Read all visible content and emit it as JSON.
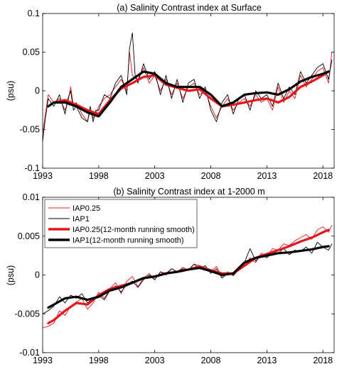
{
  "chart_data": [
    {
      "type": "line",
      "title": "(a) Salinity Contrast index at Surface",
      "xlabel": "",
      "ylabel": "(psu)",
      "xlim": [
        1993,
        2019
      ],
      "ylim": [
        -0.1,
        0.1
      ],
      "xticks": [
        1993,
        1998,
        2003,
        2008,
        2013,
        2018
      ],
      "yticks": [
        -0.1,
        -0.05,
        0,
        0.05,
        0.1
      ],
      "ytick_labels": [
        "-0.1",
        "-0.05",
        "0",
        "0.05",
        "0.1"
      ],
      "colors": {
        "IAP0.25": "#e8141c",
        "IAP1": "#000000"
      },
      "series": [
        {
          "name": "IAP0.25",
          "style": "thin",
          "color": "#e8141c",
          "x": [
            1993.0,
            1993.25,
            1993.5,
            1994.0,
            1994.5,
            1995.0,
            1995.25,
            1995.5,
            1995.75,
            1996.0,
            1996.5,
            1997.0,
            1997.25,
            1997.5,
            1997.75,
            1998.0,
            1998.5,
            1999.0,
            1999.5,
            2000.0,
            2000.5,
            2000.75,
            2001.0,
            2001.5,
            2002.0,
            2002.5,
            2003.0,
            2003.5,
            2004.0,
            2004.5,
            2005.0,
            2005.5,
            2006.0,
            2006.5,
            2007.0,
            2007.5,
            2008.0,
            2008.5,
            2009.0,
            2009.5,
            2010.0,
            2010.5,
            2011.0,
            2011.5,
            2012.0,
            2012.5,
            2013.0,
            2013.5,
            2014.0,
            2014.5,
            2015.0,
            2015.5,
            2016.0,
            2016.5,
            2017.0,
            2017.5,
            2018.0,
            2018.5,
            2018.8
          ],
          "y": [
            -0.055,
            -0.03,
            -0.005,
            -0.015,
            -0.01,
            -0.025,
            -0.015,
            0.005,
            -0.02,
            -0.015,
            -0.03,
            -0.04,
            -0.025,
            -0.035,
            -0.03,
            -0.02,
            -0.01,
            -0.005,
            0.005,
            0.015,
            0.0,
            0.05,
            0.02,
            0.015,
            0.03,
            0.01,
            0.02,
            0.0,
            0.015,
            -0.005,
            0.01,
            -0.01,
            0.005,
            0.01,
            -0.005,
            0.0,
            -0.02,
            -0.035,
            -0.02,
            -0.01,
            -0.025,
            -0.015,
            -0.01,
            -0.02,
            -0.005,
            -0.015,
            -0.01,
            -0.025,
            0.005,
            -0.015,
            0.0,
            -0.01,
            0.02,
            0.005,
            0.015,
            0.025,
            0.03,
            0.01,
            0.05
          ]
        },
        {
          "name": "IAP1",
          "style": "thin",
          "color": "#000000",
          "x": [
            1993.0,
            1993.25,
            1993.5,
            1994.0,
            1994.5,
            1995.0,
            1995.25,
            1995.5,
            1995.75,
            1996.0,
            1996.5,
            1997.0,
            1997.25,
            1997.5,
            1997.75,
            1998.0,
            1998.5,
            1999.0,
            1999.5,
            2000.0,
            2000.5,
            2000.75,
            2001.0,
            2001.25,
            2001.5,
            2002.0,
            2002.5,
            2003.0,
            2003.5,
            2004.0,
            2004.5,
            2005.0,
            2005.5,
            2006.0,
            2006.5,
            2007.0,
            2007.5,
            2008.0,
            2008.5,
            2009.0,
            2009.5,
            2010.0,
            2010.5,
            2011.0,
            2011.5,
            2012.0,
            2012.5,
            2013.0,
            2013.5,
            2014.0,
            2014.5,
            2015.0,
            2015.5,
            2016.0,
            2016.5,
            2017.0,
            2017.5,
            2018.0,
            2018.5,
            2018.8
          ],
          "y": [
            -0.065,
            -0.035,
            -0.01,
            -0.02,
            -0.005,
            -0.03,
            -0.01,
            0.0,
            -0.025,
            -0.02,
            -0.035,
            -0.04,
            -0.02,
            -0.04,
            -0.025,
            -0.025,
            -0.005,
            -0.01,
            0.01,
            0.02,
            -0.005,
            0.055,
            0.075,
            0.02,
            0.01,
            0.035,
            0.015,
            0.025,
            -0.005,
            0.02,
            -0.01,
            0.015,
            -0.015,
            0.01,
            0.015,
            -0.01,
            0.005,
            -0.025,
            -0.04,
            -0.015,
            -0.005,
            -0.03,
            -0.01,
            -0.005,
            -0.025,
            0.0,
            -0.01,
            -0.005,
            -0.02,
            0.01,
            -0.01,
            0.005,
            -0.005,
            0.025,
            0.01,
            0.02,
            0.03,
            0.035,
            0.015,
            0.04
          ]
        },
        {
          "name": "IAP0.25(12-month running smooth)",
          "style": "thick",
          "color": "#e8141c",
          "x": [
            1993.5,
            1994.0,
            1995.0,
            1996.0,
            1997.0,
            1998.0,
            1999.0,
            2000.0,
            2001.0,
            2002.0,
            2003.0,
            2004.0,
            2005.0,
            2006.0,
            2007.0,
            2008.0,
            2009.0,
            2010.0,
            2011.0,
            2012.0,
            2013.0,
            2014.0,
            2015.0,
            2016.0,
            2017.0,
            2018.0,
            2018.5
          ],
          "y": [
            -0.02,
            -0.015,
            -0.012,
            -0.018,
            -0.025,
            -0.03,
            -0.012,
            0.003,
            0.01,
            0.018,
            0.02,
            0.008,
            0.004,
            0.0,
            0.002,
            -0.01,
            -0.02,
            -0.018,
            -0.015,
            -0.012,
            -0.01,
            -0.015,
            -0.008,
            0.005,
            0.012,
            0.02,
            0.025
          ]
        },
        {
          "name": "IAP1(12-month running smooth)",
          "style": "thick",
          "color": "#000000",
          "x": [
            1993.5,
            1994.0,
            1995.0,
            1996.0,
            1997.0,
            1998.0,
            1999.0,
            2000.0,
            2001.0,
            2002.0,
            2003.0,
            2004.0,
            2005.0,
            2006.0,
            2007.0,
            2008.0,
            2009.0,
            2010.0,
            2011.0,
            2012.0,
            2013.0,
            2014.0,
            2015.0,
            2016.0,
            2017.0,
            2018.0,
            2018.5
          ],
          "y": [
            -0.02,
            -0.015,
            -0.015,
            -0.02,
            -0.028,
            -0.033,
            -0.015,
            0.005,
            0.015,
            0.025,
            0.022,
            0.01,
            0.005,
            0.005,
            0.005,
            -0.005,
            -0.02,
            -0.015,
            -0.005,
            -0.003,
            -0.002,
            -0.005,
            0.002,
            0.012,
            0.018,
            0.022,
            0.025
          ]
        }
      ]
    },
    {
      "type": "line",
      "title": "(b) Salinity Contrast index at 1-2000 m",
      "xlabel": "",
      "ylabel": "(psu)",
      "xlim": [
        1993,
        2019
      ],
      "ylim": [
        -0.01,
        0.01
      ],
      "xticks": [
        1993,
        1998,
        2003,
        2008,
        2013,
        2018
      ],
      "yticks": [
        -0.01,
        -0.005,
        0,
        0.005,
        0.01
      ],
      "ytick_labels": [
        "-0.01",
        "-0.005",
        "0",
        "0.005",
        "0.01"
      ],
      "legend": {
        "position": "top-left",
        "entries": [
          "IAP0.25",
          "IAP1",
          "IAP0.25(12-month running smooth)",
          "IAP1(12-month running smooth)"
        ]
      },
      "series": [
        {
          "name": "IAP0.25",
          "style": "thin",
          "color": "#e8141c",
          "x": [
            1993.0,
            1993.5,
            1994.0,
            1994.5,
            1995.0,
            1995.5,
            1996.0,
            1996.5,
            1997.0,
            1997.5,
            1998.0,
            1998.5,
            1999.0,
            1999.5,
            2000.0,
            2000.5,
            2001.0,
            2001.5,
            2002.0,
            2002.5,
            2003.0,
            2003.5,
            2004.0,
            2004.5,
            2005.0,
            2005.5,
            2006.0,
            2006.5,
            2007.0,
            2007.5,
            2008.0,
            2008.5,
            2009.0,
            2009.5,
            2010.0,
            2010.5,
            2011.0,
            2011.5,
            2012.0,
            2012.5,
            2013.0,
            2013.5,
            2014.0,
            2014.5,
            2015.0,
            2015.5,
            2016.0,
            2016.5,
            2017.0,
            2017.5,
            2018.0,
            2018.5,
            2018.8
          ],
          "y": [
            -0.0068,
            -0.0066,
            -0.0062,
            -0.0046,
            -0.0052,
            -0.004,
            -0.0035,
            -0.003,
            -0.0044,
            -0.0036,
            -0.0022,
            -0.003,
            -0.0018,
            -0.001,
            -0.0024,
            -0.0008,
            -0.0002,
            -0.0015,
            -0.0004,
            0.0002,
            -0.0006,
            0.0004,
            0.0002,
            0.0008,
            0.0004,
            0.001,
            0.0006,
            0.0014,
            0.0012,
            0.0009,
            0.0004,
            0.0011,
            -0.0002,
            0.0004,
            -0.0001,
            0.0007,
            0.0012,
            0.0022,
            0.0016,
            0.0028,
            0.0024,
            0.0034,
            0.0032,
            0.004,
            0.0038,
            0.0044,
            0.0048,
            0.0052,
            0.0046,
            0.0058,
            0.0062,
            0.0055,
            0.0064
          ]
        },
        {
          "name": "IAP1",
          "style": "thin",
          "color": "#000000",
          "x": [
            1993.0,
            1993.5,
            1994.0,
            1994.5,
            1995.0,
            1995.5,
            1996.0,
            1996.5,
            1997.0,
            1997.5,
            1998.0,
            1998.5,
            1999.0,
            1999.5,
            2000.0,
            2000.5,
            2001.0,
            2001.5,
            2002.0,
            2002.5,
            2003.0,
            2003.5,
            2004.0,
            2004.5,
            2005.0,
            2005.5,
            2006.0,
            2006.5,
            2007.0,
            2007.5,
            2008.0,
            2008.5,
            2009.0,
            2009.5,
            2010.0,
            2010.5,
            2011.0,
            2011.5,
            2012.0,
            2012.5,
            2013.0,
            2013.5,
            2014.0,
            2014.5,
            2015.0,
            2015.5,
            2016.0,
            2016.5,
            2017.0,
            2017.5,
            2018.0,
            2018.5,
            2018.8
          ],
          "y": [
            -0.005,
            -0.0046,
            -0.004,
            -0.0028,
            -0.0036,
            -0.0026,
            -0.003,
            -0.0024,
            -0.0036,
            -0.003,
            -0.0026,
            -0.0032,
            -0.002,
            -0.0014,
            -0.0022,
            -0.0012,
            -0.0008,
            -0.0016,
            -0.0006,
            0.0,
            -0.0006,
            0.0004,
            0.0,
            0.0008,
            0.0004,
            0.0008,
            0.0006,
            0.0014,
            0.0008,
            0.0012,
            0.0002,
            0.0008,
            -0.0004,
            0.0002,
            0.0,
            0.0006,
            0.0016,
            0.0034,
            0.0018,
            0.0026,
            0.0022,
            0.003,
            0.0028,
            0.0034,
            0.0026,
            0.0032,
            0.003,
            0.0036,
            0.0028,
            0.0042,
            0.0036,
            0.0032,
            0.004
          ]
        },
        {
          "name": "IAP0.25(12-month running smooth)",
          "style": "thick",
          "color": "#e8141c",
          "x": [
            1993.5,
            1994.0,
            1995.0,
            1996.0,
            1997.0,
            1998.0,
            1999.0,
            2000.0,
            2001.0,
            2002.0,
            2003.0,
            2004.0,
            2005.0,
            2006.0,
            2007.0,
            2008.0,
            2009.0,
            2010.0,
            2011.0,
            2012.0,
            2013.0,
            2014.0,
            2015.0,
            2016.0,
            2017.0,
            2018.0,
            2018.5
          ],
          "y": [
            -0.0062,
            -0.0058,
            -0.0046,
            -0.0036,
            -0.0038,
            -0.0026,
            -0.0018,
            -0.0014,
            -0.001,
            -0.0004,
            -0.0002,
            0.0002,
            0.0004,
            0.0007,
            0.0011,
            0.0006,
            0.0002,
            0.0002,
            0.0012,
            0.0022,
            0.0027,
            0.0032,
            0.0037,
            0.0043,
            0.0048,
            0.0055,
            0.0058
          ]
        },
        {
          "name": "IAP1(12-month running smooth)",
          "style": "thick",
          "color": "#000000",
          "x": [
            1993.5,
            1994.0,
            1995.0,
            1996.0,
            1997.0,
            1998.0,
            1999.0,
            2000.0,
            2001.0,
            2002.0,
            2003.0,
            2004.0,
            2005.0,
            2006.0,
            2007.0,
            2008.0,
            2009.0,
            2010.0,
            2011.0,
            2012.0,
            2013.0,
            2014.0,
            2015.0,
            2016.0,
            2017.0,
            2018.0,
            2018.5
          ],
          "y": [
            -0.0042,
            -0.0038,
            -0.003,
            -0.0028,
            -0.0032,
            -0.0028,
            -0.002,
            -0.0016,
            -0.001,
            -0.0004,
            -0.0002,
            0.0002,
            0.0004,
            0.0007,
            0.0009,
            0.0005,
            0.0,
            0.0002,
            0.0016,
            0.0022,
            0.0025,
            0.0028,
            0.0029,
            0.0031,
            0.0033,
            0.0036,
            0.0037
          ]
        }
      ]
    }
  ]
}
